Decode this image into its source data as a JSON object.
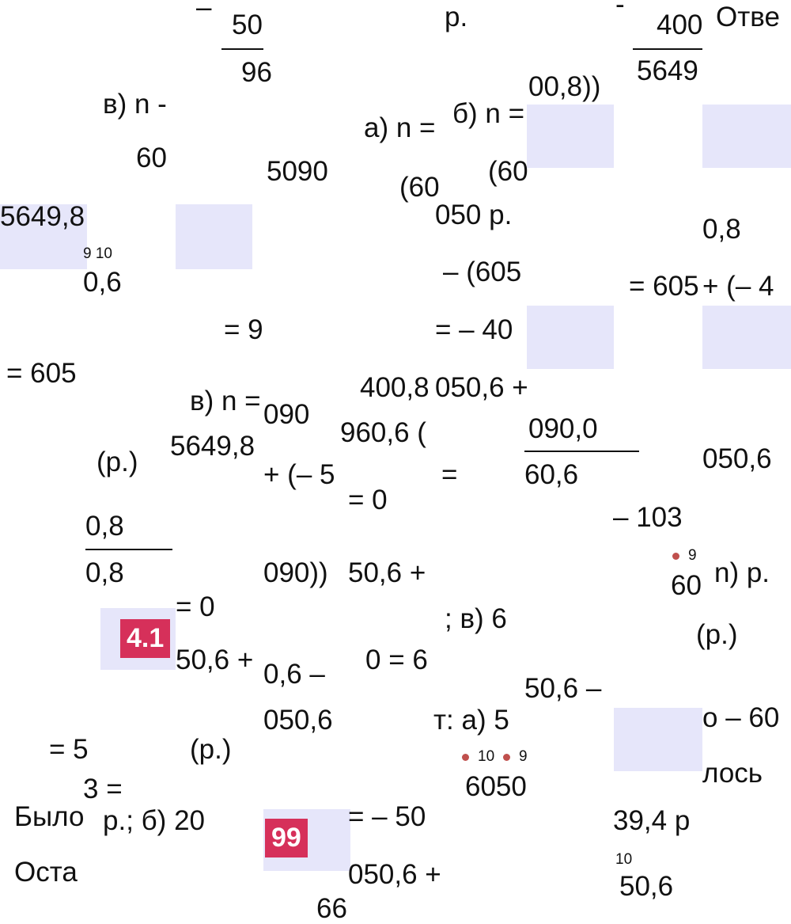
{
  "fragments": [
    "–",
    "50",
    "96",
    "р.",
    "-",
    "400",
    "5649",
    "Отве",
    "00,8))",
    "в) n -",
    "а) n =",
    "б) n =",
    "60",
    "5090",
    "(60",
    "(60",
    "5649,8",
    "050 р.",
    "0,8",
    "9 10",
    "0,6",
    "– (605",
    "= 605",
    "+ (– 4",
    "= 9",
    "= – 40",
    "= 605",
    "в) n =",
    "090",
    "400,8",
    "050,6 +",
    "5649,8",
    "960,6 (",
    "090,0",
    "050,6",
    "(р.)",
    "+ (– 5",
    "=",
    "60,6",
    "= 0",
    "– 103",
    "0,8",
    "0,8",
    "090))",
    "50,6 +",
    "9",
    "60",
    "n) р.",
    "= 0",
    "; в) 6",
    "(р.)",
    "50,6 +",
    "0,6 –",
    "0 = 6",
    "50,6 –",
    "050,6",
    "т: а) 5",
    "о – 60",
    "= 5",
    "(р.)",
    "10",
    "9",
    "6050",
    "лось",
    "3 =",
    "Было",
    "р.; б) 20",
    "= – 50",
    "39,4 р",
    "10",
    "Оста",
    "050,6 +",
    "50,6",
    "66"
  ],
  "badges": [
    "4.1",
    "99"
  ]
}
